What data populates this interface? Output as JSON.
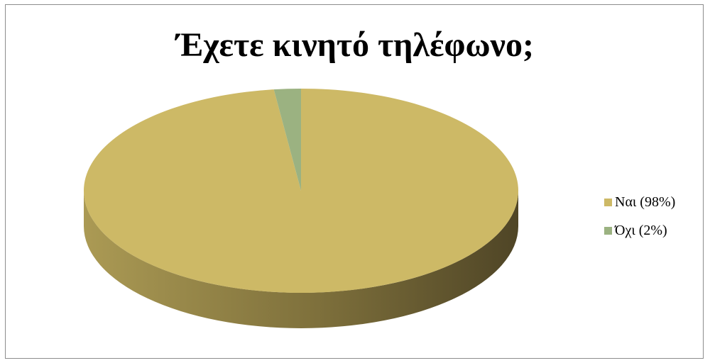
{
  "chart_data": {
    "type": "pie",
    "title": "Έχετε κινητό τηλέφωνο;",
    "style": "3d",
    "legend_position": "right",
    "slices": [
      {
        "label": "Ναι (98%)",
        "value": 98,
        "color": "#cdb966",
        "side_dark": "#4f4526",
        "side_light": "#ab9a54"
      },
      {
        "label": "Όχι (2%)",
        "value": 2,
        "color": "#9bb281",
        "side_dark": "#5a6a48",
        "side_light": "#8ea375"
      }
    ]
  }
}
